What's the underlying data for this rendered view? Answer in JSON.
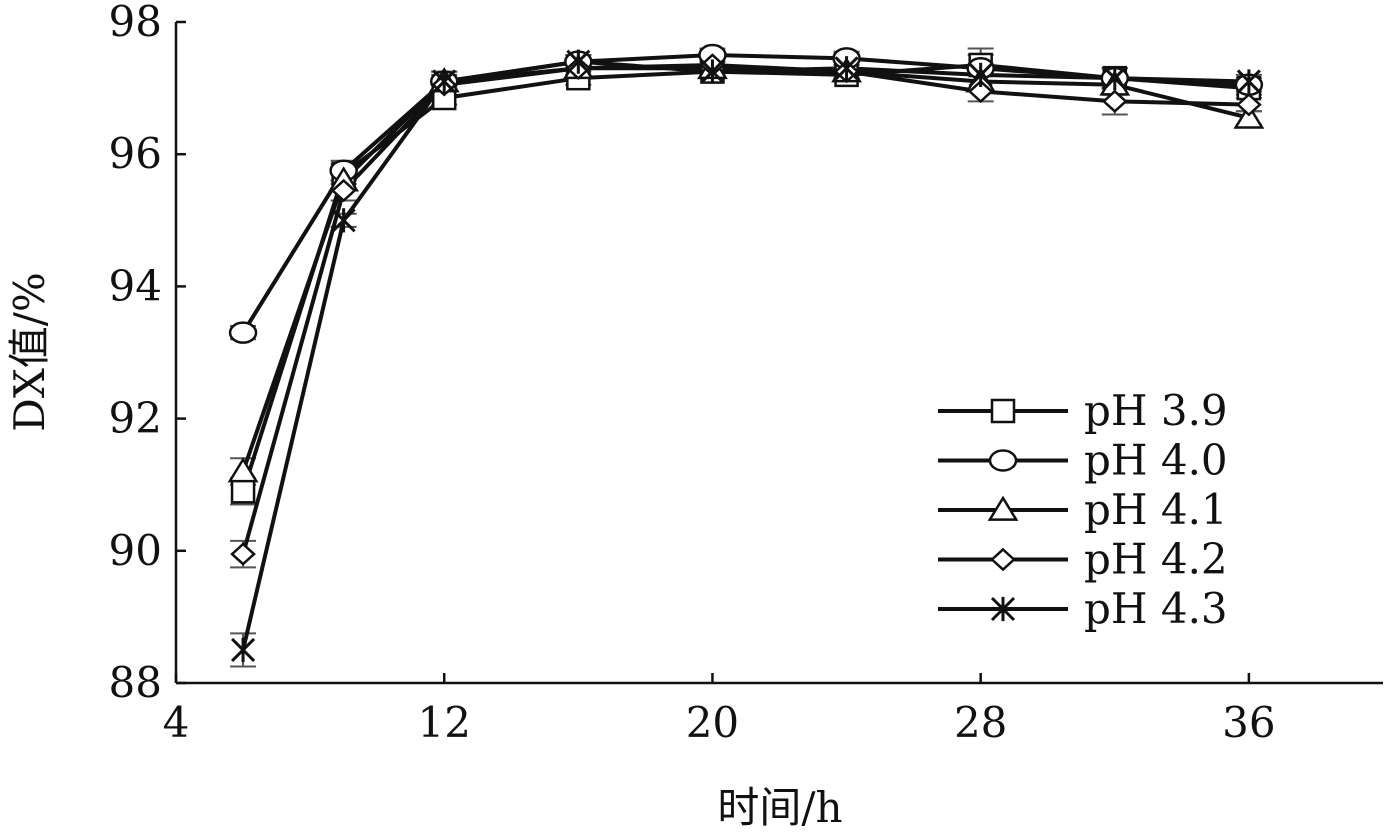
{
  "chart_data": {
    "type": "line",
    "xlabel": "时间/h",
    "ylabel": "DX值/%",
    "xlim": [
      4,
      40
    ],
    "ylim": [
      88,
      98
    ],
    "xticks": [
      "4",
      "12",
      "20",
      "28",
      "36"
    ],
    "yticks": [
      "88",
      "90",
      "92",
      "94",
      "96",
      "98"
    ],
    "x": [
      6,
      9,
      12,
      16,
      20,
      24,
      28,
      32,
      36
    ],
    "legend_position": "bottom-right",
    "grid": false,
    "series": [
      {
        "name": "pH 3.9",
        "marker": "square",
        "values": [
          90.9,
          95.7,
          96.85,
          97.15,
          97.25,
          97.2,
          97.35,
          97.15,
          97.0
        ],
        "errors": [
          0.2,
          0.15,
          0.1,
          0.1,
          0.1,
          0.1,
          0.25,
          0.15,
          0.1
        ]
      },
      {
        "name": "pH 4.0",
        "marker": "circle",
        "values": [
          93.3,
          95.75,
          97.1,
          97.4,
          97.5,
          97.45,
          97.3,
          97.15,
          97.05
        ],
        "errors": [
          0.1,
          0.15,
          0.1,
          0.1,
          0.1,
          0.1,
          0.2,
          0.15,
          0.1
        ]
      },
      {
        "name": "pH 4.1",
        "marker": "triangle",
        "values": [
          91.2,
          95.6,
          97.1,
          97.3,
          97.3,
          97.25,
          97.1,
          97.05,
          96.55
        ],
        "errors": [
          0.2,
          0.15,
          0.15,
          0.1,
          0.1,
          0.1,
          0.15,
          0.15,
          0.1
        ]
      },
      {
        "name": "pH 4.2",
        "marker": "diamond",
        "values": [
          89.95,
          95.45,
          97.05,
          97.3,
          97.35,
          97.25,
          96.95,
          96.8,
          96.75
        ],
        "errors": [
          0.2,
          0.15,
          0.1,
          0.1,
          0.1,
          0.1,
          0.15,
          0.2,
          0.1
        ]
      },
      {
        "name": "pH 4.3",
        "marker": "asterisk",
        "values": [
          88.5,
          95.0,
          97.1,
          97.4,
          97.25,
          97.3,
          97.2,
          97.15,
          97.1
        ],
        "errors": [
          0.25,
          0.1,
          0.15,
          0.1,
          0.1,
          0.1,
          0.1,
          0.15,
          0.1
        ]
      }
    ]
  }
}
